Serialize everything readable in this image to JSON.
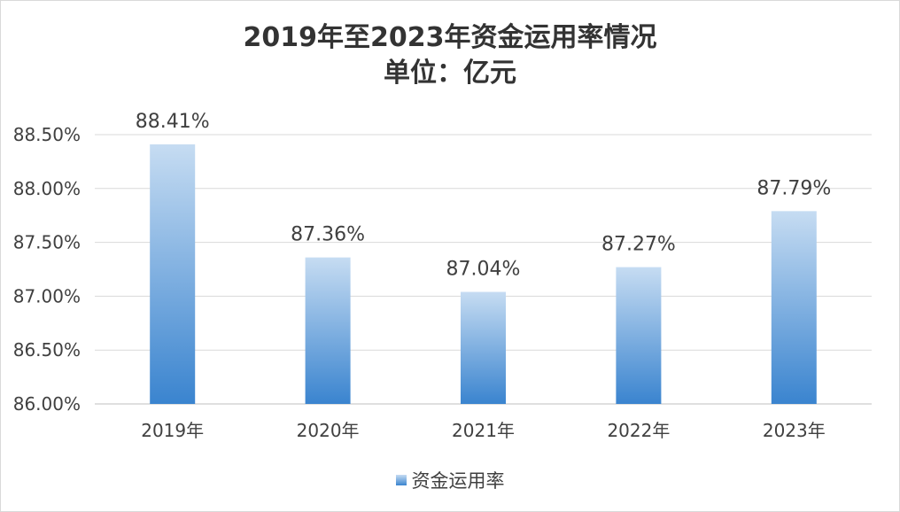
{
  "chart_data": {
    "type": "bar",
    "title": "2019年至2023年资金运用率情况",
    "subtitle": "单位：亿元",
    "categories": [
      "2019年",
      "2020年",
      "2021年",
      "2022年",
      "2023年"
    ],
    "series": [
      {
        "name": "资金运用率",
        "values": [
          88.41,
          87.36,
          87.04,
          87.27,
          87.79
        ],
        "data_labels": [
          "88.41%",
          "87.36%",
          "87.04%",
          "87.27%",
          "87.79%"
        ]
      }
    ],
    "ylim": [
      86.0,
      88.5
    ],
    "y_ticks": [
      86.0,
      86.5,
      87.0,
      87.5,
      88.0,
      88.5
    ],
    "y_tick_labels": [
      "86.00%",
      "86.50%",
      "87.00%",
      "87.50%",
      "88.00%",
      "88.50%"
    ],
    "xlabel": "",
    "ylabel": "",
    "grid": true,
    "legend_position": "bottom",
    "colors": {
      "bar_top": "#c6dcf2",
      "bar_bottom": "#3a84cf",
      "grid": "#d9d9d9",
      "text": "#404040"
    }
  }
}
